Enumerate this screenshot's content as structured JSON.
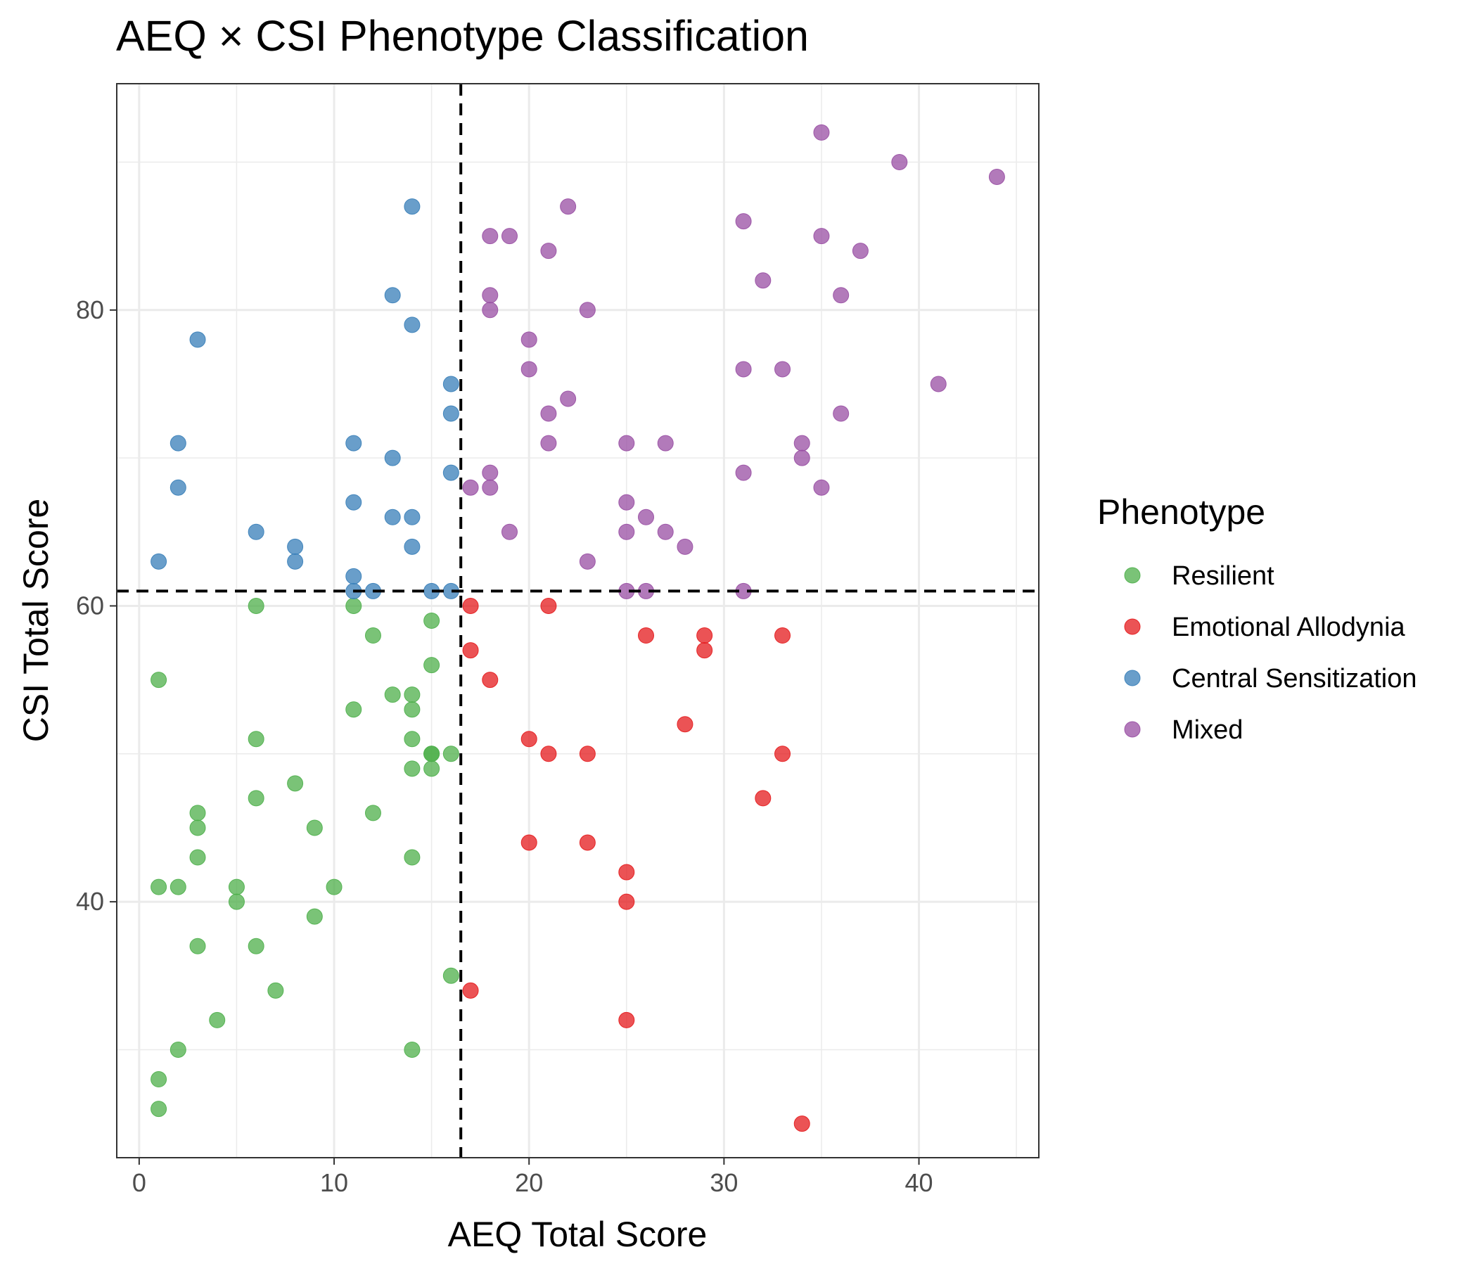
{
  "chart_data": {
    "type": "scatter",
    "title": "AEQ × CSI Phenotype Classification",
    "xlabel": "AEQ Total Score",
    "ylabel": "CSI Total Score",
    "xlim": [
      -1.15,
      46.15
    ],
    "ylim": [
      22.7,
      95.3
    ],
    "xticks": [
      0,
      10,
      20,
      30,
      40
    ],
    "yticks": [
      40,
      60,
      80
    ],
    "grid": true,
    "thresholds": {
      "x": 16.5,
      "y": 61,
      "style": "dashed"
    },
    "legend": {
      "title": "Phenotype",
      "position": "right",
      "entries": [
        "Resilient",
        "Emotional Allodynia",
        "Central Sensitization",
        "Mixed"
      ]
    },
    "series": [
      {
        "name": "Resilient",
        "color": "#4daf4a",
        "points": [
          [
            1,
            55
          ],
          [
            1,
            41
          ],
          [
            1,
            28
          ],
          [
            1,
            26
          ],
          [
            2,
            41
          ],
          [
            2,
            30
          ],
          [
            3,
            46
          ],
          [
            3,
            45
          ],
          [
            3,
            43
          ],
          [
            3,
            37
          ],
          [
            4,
            32
          ],
          [
            5,
            41
          ],
          [
            5,
            40
          ],
          [
            6,
            60
          ],
          [
            6,
            51
          ],
          [
            6,
            47
          ],
          [
            6,
            37
          ],
          [
            7,
            34
          ],
          [
            8,
            48
          ],
          [
            9,
            45
          ],
          [
            9,
            39
          ],
          [
            10,
            41
          ],
          [
            11,
            60
          ],
          [
            11,
            53
          ],
          [
            12,
            58
          ],
          [
            12,
            46
          ],
          [
            13,
            54
          ],
          [
            14,
            54
          ],
          [
            14,
            53
          ],
          [
            14,
            51
          ],
          [
            14,
            49
          ],
          [
            14,
            43
          ],
          [
            14,
            30
          ],
          [
            15,
            59
          ],
          [
            15,
            56
          ],
          [
            15,
            50
          ],
          [
            15,
            50
          ],
          [
            15,
            49
          ],
          [
            16,
            50
          ],
          [
            16,
            35
          ]
        ]
      },
      {
        "name": "Emotional Allodynia",
        "color": "#e41a1c",
        "points": [
          [
            17,
            60
          ],
          [
            17,
            57
          ],
          [
            17,
            34
          ],
          [
            18,
            55
          ],
          [
            20,
            51
          ],
          [
            20,
            44
          ],
          [
            21,
            60
          ],
          [
            21,
            50
          ],
          [
            23,
            50
          ],
          [
            23,
            44
          ],
          [
            25,
            42
          ],
          [
            25,
            40
          ],
          [
            25,
            32
          ],
          [
            26,
            58
          ],
          [
            28,
            52
          ],
          [
            29,
            58
          ],
          [
            29,
            57
          ],
          [
            32,
            47
          ],
          [
            33,
            58
          ],
          [
            33,
            50
          ],
          [
            34,
            25
          ]
        ]
      },
      {
        "name": "Central Sensitization",
        "color": "#377eb8",
        "points": [
          [
            1,
            63
          ],
          [
            2,
            71
          ],
          [
            2,
            68
          ],
          [
            3,
            78
          ],
          [
            6,
            65
          ],
          [
            8,
            64
          ],
          [
            8,
            63
          ],
          [
            11,
            71
          ],
          [
            11,
            67
          ],
          [
            11,
            62
          ],
          [
            11,
            61
          ],
          [
            12,
            61
          ],
          [
            13,
            81
          ],
          [
            13,
            70
          ],
          [
            13,
            66
          ],
          [
            14,
            87
          ],
          [
            14,
            79
          ],
          [
            14,
            66
          ],
          [
            14,
            64
          ],
          [
            15,
            61
          ],
          [
            16,
            75
          ],
          [
            16,
            73
          ],
          [
            16,
            69
          ],
          [
            16,
            61
          ]
        ]
      },
      {
        "name": "Mixed",
        "color": "#984ea3",
        "points": [
          [
            17,
            68
          ],
          [
            18,
            85
          ],
          [
            18,
            81
          ],
          [
            18,
            80
          ],
          [
            18,
            69
          ],
          [
            18,
            68
          ],
          [
            19,
            85
          ],
          [
            19,
            65
          ],
          [
            20,
            78
          ],
          [
            20,
            76
          ],
          [
            21,
            84
          ],
          [
            21,
            73
          ],
          [
            21,
            71
          ],
          [
            22,
            87
          ],
          [
            22,
            74
          ],
          [
            23,
            80
          ],
          [
            23,
            63
          ],
          [
            25,
            71
          ],
          [
            25,
            67
          ],
          [
            25,
            65
          ],
          [
            25,
            61
          ],
          [
            26,
            66
          ],
          [
            26,
            61
          ],
          [
            27,
            71
          ],
          [
            27,
            65
          ],
          [
            28,
            64
          ],
          [
            31,
            86
          ],
          [
            31,
            76
          ],
          [
            31,
            69
          ],
          [
            31,
            61
          ],
          [
            32,
            82
          ],
          [
            33,
            76
          ],
          [
            34,
            71
          ],
          [
            34,
            70
          ],
          [
            35,
            92
          ],
          [
            35,
            85
          ],
          [
            35,
            68
          ],
          [
            36,
            81
          ],
          [
            36,
            73
          ],
          [
            37,
            84
          ],
          [
            39,
            90
          ],
          [
            41,
            75
          ],
          [
            44,
            89
          ]
        ]
      }
    ]
  }
}
